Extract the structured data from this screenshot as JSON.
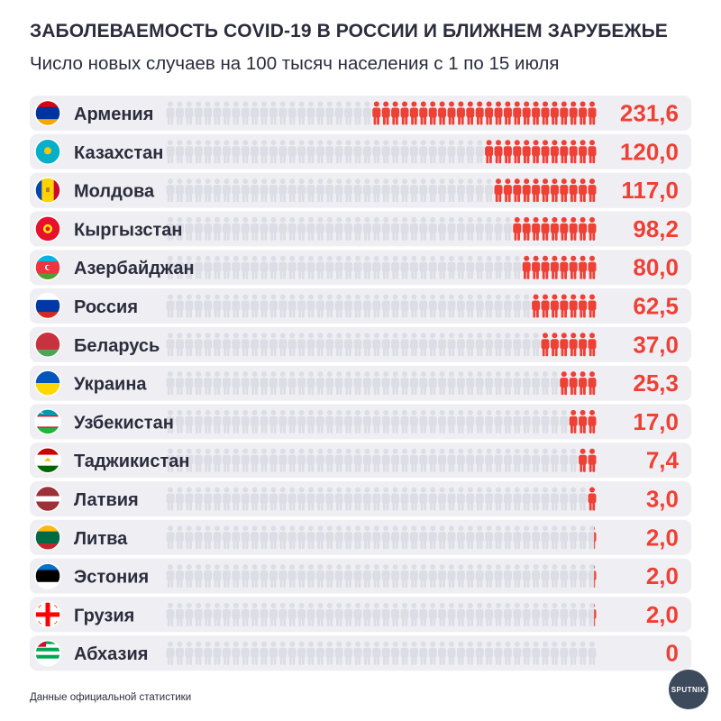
{
  "title": "ЗАБОЛЕВАЕМОСТЬ COVID-19 В РОССИИ И БЛИЖНЕМ ЗАРУБЕЖЬЕ",
  "subtitle": "Число новых случаев на 100 тысяч населения с 1 по 15 июля",
  "source": "Данные официальной статистики",
  "logo_text": "SPUTNIK",
  "colors": {
    "row_bg": "#efeff3",
    "ghost_icon": "#dcdde5",
    "active_icon": "#ef4036",
    "value": "#ef4036",
    "label": "#2b2d3d"
  },
  "chart_data": {
    "type": "bar",
    "title": "ЗАБОЛЕВАЕМОСТЬ COVID-19 В РОССИИ И БЛИЖНЕМ ЗАРУБЕЖЬЕ",
    "subtitle": "Число новых случаев на 100 тысяч населения с 1 по 15 июля",
    "orientation": "horizontal",
    "categories": [
      "Армения",
      "Казахстан",
      "Молдова",
      "Кыргызстан",
      "Азербайджан",
      "Россия",
      "Беларусь",
      "Украина",
      "Узбекистан",
      "Таджикистан",
      "Латвия",
      "Литва",
      "Эстония",
      "Грузия",
      "Абхазия"
    ],
    "values": [
      231.6,
      120.0,
      117.0,
      98.2,
      80.0,
      62.5,
      37.0,
      25.3,
      17.0,
      7.4,
      3.0,
      2.0,
      2.0,
      2.0,
      0
    ],
    "value_labels": [
      "231,6",
      "120,0",
      "117,0",
      "98,2",
      "80,0",
      "62,5",
      "37,0",
      "25,3",
      "17,0",
      "7,4",
      "3,0",
      "2,0",
      "2,0",
      "2,0",
      "0"
    ],
    "flag_icons": [
      "armenia-flag",
      "kazakhstan-flag",
      "moldova-flag",
      "kyrgyzstan-flag",
      "azerbaijan-flag",
      "russia-flag",
      "belarus-flag",
      "ukraine-flag",
      "uzbekistan-flag",
      "tajikistan-flag",
      "latvia-flag",
      "lithuania-flag",
      "estonia-flag",
      "georgia-flag",
      "abkhazia-flag"
    ],
    "active_icon_counts": [
      24,
      12,
      11,
      9,
      8,
      7,
      6,
      4,
      3,
      2,
      1,
      0.3,
      0.3,
      0.3,
      0
    ],
    "xlabel": "",
    "ylabel": "",
    "grid": false,
    "legend": "none"
  }
}
